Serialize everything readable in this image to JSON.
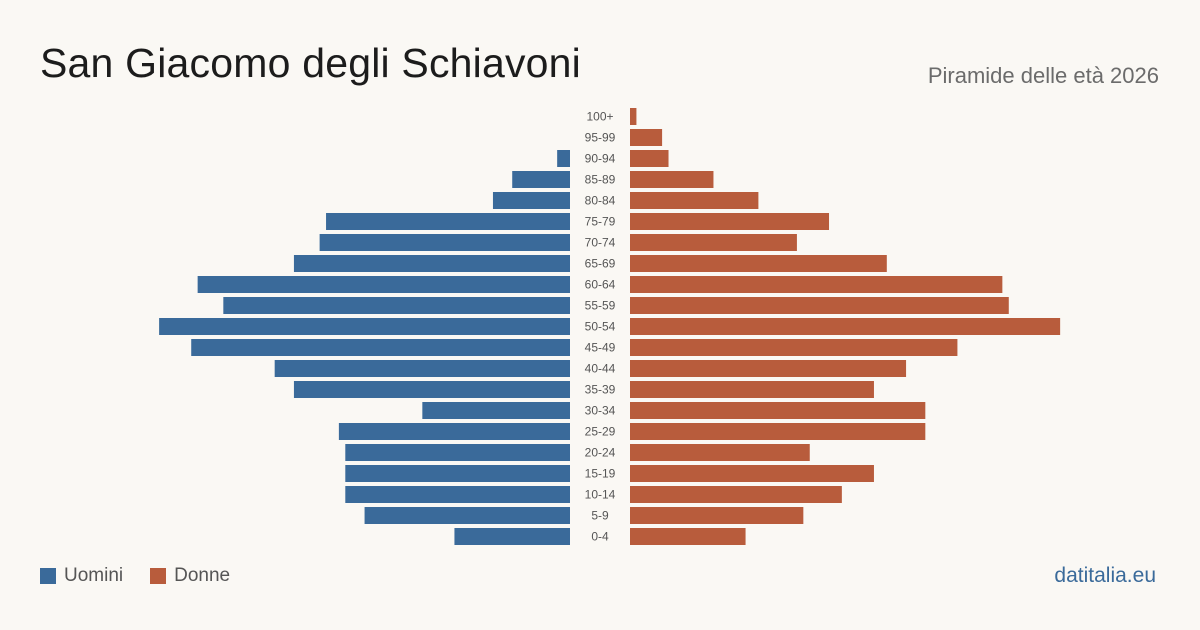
{
  "title": "San Giacomo degli Schiavoni",
  "subtitle": "Piramide delle età 2026",
  "legend": {
    "men_label": "Uomini",
    "women_label": "Donne"
  },
  "source": "datitalia.eu",
  "colors": {
    "men": "#3a6a9a",
    "women": "#b85c3c",
    "background": "#faf8f4"
  },
  "chart_data": {
    "type": "bar",
    "orientation": "horizontal-pyramid",
    "categories": [
      "100+",
      "95-99",
      "90-94",
      "85-89",
      "80-84",
      "75-79",
      "70-74",
      "65-69",
      "60-64",
      "55-59",
      "50-54",
      "45-49",
      "40-44",
      "35-39",
      "30-34",
      "25-29",
      "20-24",
      "15-19",
      "10-14",
      "5-9",
      "0-4"
    ],
    "series": [
      {
        "name": "Uomini",
        "values": [
          0,
          0,
          2,
          9,
          12,
          38,
          39,
          43,
          58,
          54,
          64,
          59,
          46,
          43,
          23,
          36,
          35,
          35,
          35,
          32,
          18
        ]
      },
      {
        "name": "Donne",
        "values": [
          1,
          5,
          6,
          13,
          20,
          31,
          26,
          40,
          58,
          59,
          67,
          51,
          43,
          38,
          46,
          46,
          28,
          38,
          33,
          27,
          18
        ]
      }
    ]
  }
}
